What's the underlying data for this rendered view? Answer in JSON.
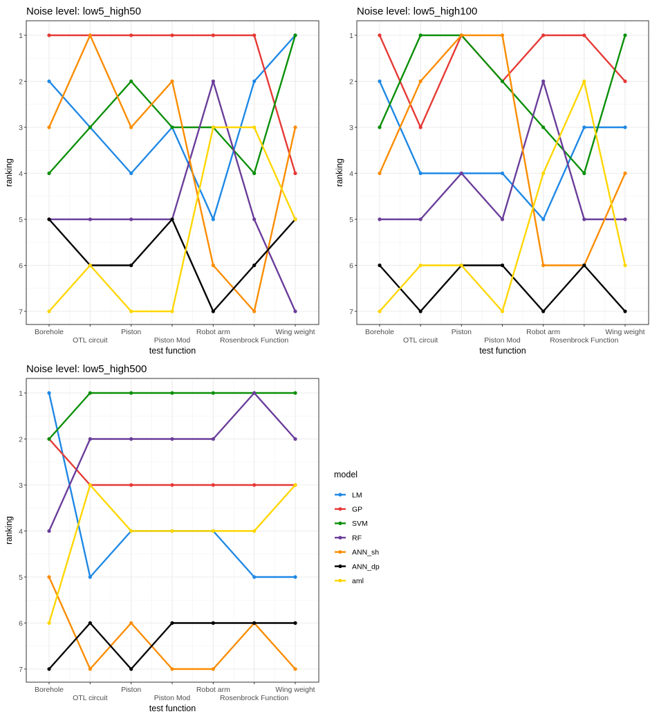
{
  "chart_data": [
    {
      "type": "line",
      "title": "Noise level: low5_high50",
      "xlabel": "test function",
      "ylabel": "ranking",
      "categories": [
        "Borehole",
        "OTL circuit",
        "Piston",
        "Piston Mod",
        "Robot arm",
        "Rosenbrock Function",
        "Wing weight"
      ],
      "y_ticks": [
        1,
        2,
        3,
        4,
        5,
        6,
        7
      ],
      "y_reversed": true,
      "grid": true,
      "series": [
        {
          "name": "LM",
          "color": "#1E88E5",
          "values": [
            2,
            3,
            4,
            3,
            5,
            2,
            1
          ]
        },
        {
          "name": "GP",
          "color": "#E53935",
          "values": [
            1,
            1,
            1,
            1,
            1,
            1,
            4
          ]
        },
        {
          "name": "SVM",
          "color": "#0A8F08",
          "values": [
            4,
            3,
            2,
            3,
            3,
            4,
            1
          ]
        },
        {
          "name": "RF",
          "color": "#6A3D9A",
          "values": [
            5,
            5,
            5,
            5,
            2,
            5,
            7
          ]
        },
        {
          "name": "ANN_sh",
          "color": "#FB8C00",
          "values": [
            3,
            1,
            3,
            2,
            6,
            7,
            3
          ]
        },
        {
          "name": "ANN_dp",
          "color": "#000000",
          "values": [
            5,
            6,
            6,
            5,
            7,
            6,
            5
          ]
        },
        {
          "name": "aml",
          "color": "#FFD600",
          "values": [
            7,
            6,
            7,
            7,
            3,
            3,
            5
          ]
        }
      ]
    },
    {
      "type": "line",
      "title": "Noise level: low5_high100",
      "xlabel": "test function",
      "ylabel": "ranking",
      "categories": [
        "Borehole",
        "OTL circuit",
        "Piston",
        "Piston Mod",
        "Robot arm",
        "Rosenbrock Function",
        "Wing weight"
      ],
      "y_ticks": [
        1,
        2,
        3,
        4,
        5,
        6,
        7
      ],
      "y_reversed": true,
      "grid": true,
      "series": [
        {
          "name": "LM",
          "color": "#1E88E5",
          "values": [
            2,
            4,
            4,
            4,
            5,
            3,
            3
          ]
        },
        {
          "name": "GP",
          "color": "#E53935",
          "values": [
            1,
            3,
            1,
            2,
            1,
            1,
            2
          ]
        },
        {
          "name": "SVM",
          "color": "#0A8F08",
          "values": [
            3,
            1,
            1,
            2,
            3,
            4,
            1
          ]
        },
        {
          "name": "RF",
          "color": "#6A3D9A",
          "values": [
            5,
            5,
            4,
            5,
            2,
            5,
            5
          ]
        },
        {
          "name": "ANN_sh",
          "color": "#FB8C00",
          "values": [
            4,
            2,
            1,
            1,
            6,
            6,
            4
          ]
        },
        {
          "name": "ANN_dp",
          "color": "#000000",
          "values": [
            6,
            7,
            6,
            6,
            7,
            6,
            7
          ]
        },
        {
          "name": "aml",
          "color": "#FFD600",
          "values": [
            7,
            6,
            6,
            7,
            4,
            2,
            6
          ]
        }
      ]
    },
    {
      "type": "line",
      "title": "Noise level: low5_high500",
      "xlabel": "test function",
      "ylabel": "ranking",
      "categories": [
        "Borehole",
        "OTL circuit",
        "Piston",
        "Piston Mod",
        "Robot arm",
        "Rosenbrock Function",
        "Wing weight"
      ],
      "y_ticks": [
        1,
        2,
        3,
        4,
        5,
        6,
        7
      ],
      "y_reversed": true,
      "grid": true,
      "series": [
        {
          "name": "LM",
          "color": "#1E88E5",
          "values": [
            1,
            5,
            4,
            4,
            4,
            5,
            5
          ]
        },
        {
          "name": "GP",
          "color": "#E53935",
          "values": [
            2,
            3,
            3,
            3,
            3,
            3,
            3
          ]
        },
        {
          "name": "SVM",
          "color": "#0A8F08",
          "values": [
            2,
            1,
            1,
            1,
            1,
            1,
            1
          ]
        },
        {
          "name": "RF",
          "color": "#6A3D9A",
          "values": [
            4,
            2,
            2,
            2,
            2,
            1,
            2
          ]
        },
        {
          "name": "ANN_sh",
          "color": "#FB8C00",
          "values": [
            5,
            7,
            6,
            7,
            7,
            6,
            7
          ]
        },
        {
          "name": "ANN_dp",
          "color": "#000000",
          "values": [
            7,
            6,
            7,
            6,
            6,
            6,
            6
          ]
        },
        {
          "name": "aml",
          "color": "#FFD600",
          "values": [
            6,
            3,
            4,
            4,
            4,
            4,
            3
          ]
        }
      ]
    }
  ],
  "legend": {
    "title": "model",
    "position": "right",
    "items": [
      {
        "label": "LM",
        "color": "#1E88E5"
      },
      {
        "label": "GP",
        "color": "#E53935"
      },
      {
        "label": "SVM",
        "color": "#0A8F08"
      },
      {
        "label": "RF",
        "color": "#6A3D9A"
      },
      {
        "label": "ANN_sh",
        "color": "#FB8C00"
      },
      {
        "label": "ANN_dp",
        "color": "#000000"
      },
      {
        "label": "aml",
        "color": "#FFD600"
      }
    ]
  }
}
